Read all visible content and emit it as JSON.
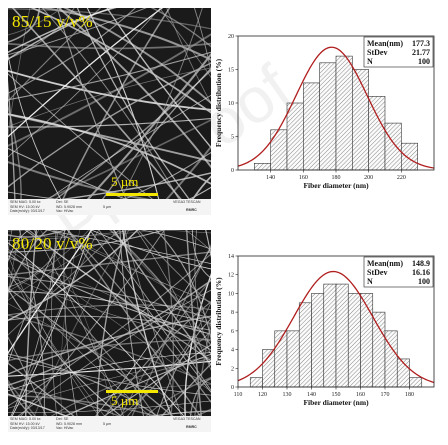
{
  "panels": [
    {
      "sem": {
        "label": "85/15 v/v%",
        "scale": "5 µm",
        "info": {
          "line1": "SEM MAG: 5.00 kx",
          "line2": "SEM HV: 15.00 kV",
          "line3": "Date(m/d/y): 03/13/17",
          "det_label": "Det: SE",
          "wd_label": "WD: 5.9028 mm",
          "vac_label": "Vac: HiVac",
          "scale_small": "5 µm",
          "brand": "VEGA3 TESCAN",
          "brand2": "RMRC"
        }
      }
    },
    {
      "sem": {
        "label": "80/20 v/v%",
        "scale": "5 µm",
        "info": {
          "line1": "SEM MAG: 5.00 kx",
          "line2": "SEM HV: 15.00 kV",
          "line3": "Date(m/d/y): 03/13/17",
          "det_label": "Det: SE",
          "wd_label": "WD: 5.9028 mm",
          "vac_label": "Vac: HiVac",
          "scale_small": "5 µm",
          "brand": "VEGA3 TESCAN",
          "brand2": "RMRC"
        }
      }
    }
  ],
  "chart_data": [
    {
      "type": "bar",
      "title": "",
      "xlabel": "Fiber diameter (nm)",
      "ylabel": "Frequency distribution (%)",
      "xlim": [
        120,
        240
      ],
      "ylim": [
        0,
        20
      ],
      "xticks": [
        140,
        160,
        180,
        200,
        220
      ],
      "yticks": [
        0,
        5,
        10,
        15,
        20
      ],
      "bin_edges": [
        130,
        140,
        150,
        160,
        170,
        180,
        190,
        200,
        210,
        220,
        230
      ],
      "values": [
        1,
        6,
        10,
        13,
        16,
        17,
        15,
        11,
        7,
        4
      ],
      "fit": {
        "type": "normal",
        "mean": 177.3,
        "std": 21.77,
        "n": 100
      },
      "stats": [
        {
          "label": "Mean(nm)",
          "value": "177.3"
        },
        {
          "label": "StDev",
          "value": "21.77"
        },
        {
          "label": "N",
          "value": "100"
        }
      ],
      "fit_color": "#b01e1e",
      "bar_hatch_color": "#555555"
    },
    {
      "type": "bar",
      "title": "",
      "xlabel": "Fiber diameter (nm)",
      "ylabel": "Frequency distribution (%)",
      "xlim": [
        110,
        190
      ],
      "ylim": [
        0,
        14
      ],
      "xticks": [
        110,
        120,
        130,
        140,
        150,
        160,
        170,
        180
      ],
      "yticks": [
        0,
        2,
        4,
        6,
        8,
        10,
        12,
        14
      ],
      "bin_edges": [
        115,
        120,
        125,
        130,
        135,
        140,
        145,
        150,
        155,
        160,
        165,
        170,
        175,
        180,
        185
      ],
      "values": [
        1,
        4,
        6,
        6,
        9,
        10,
        11,
        11,
        10,
        10,
        8,
        6,
        3,
        1
      ],
      "fit": {
        "type": "normal",
        "mean": 148.9,
        "std": 16.16,
        "n": 100
      },
      "stats": [
        {
          "label": "Mean(nm)",
          "value": "148.9"
        },
        {
          "label": "StDev",
          "value": "16.16"
        },
        {
          "label": "N",
          "value": "100"
        }
      ],
      "fit_color": "#b01e1e",
      "bar_hatch_color": "#555555"
    }
  ]
}
